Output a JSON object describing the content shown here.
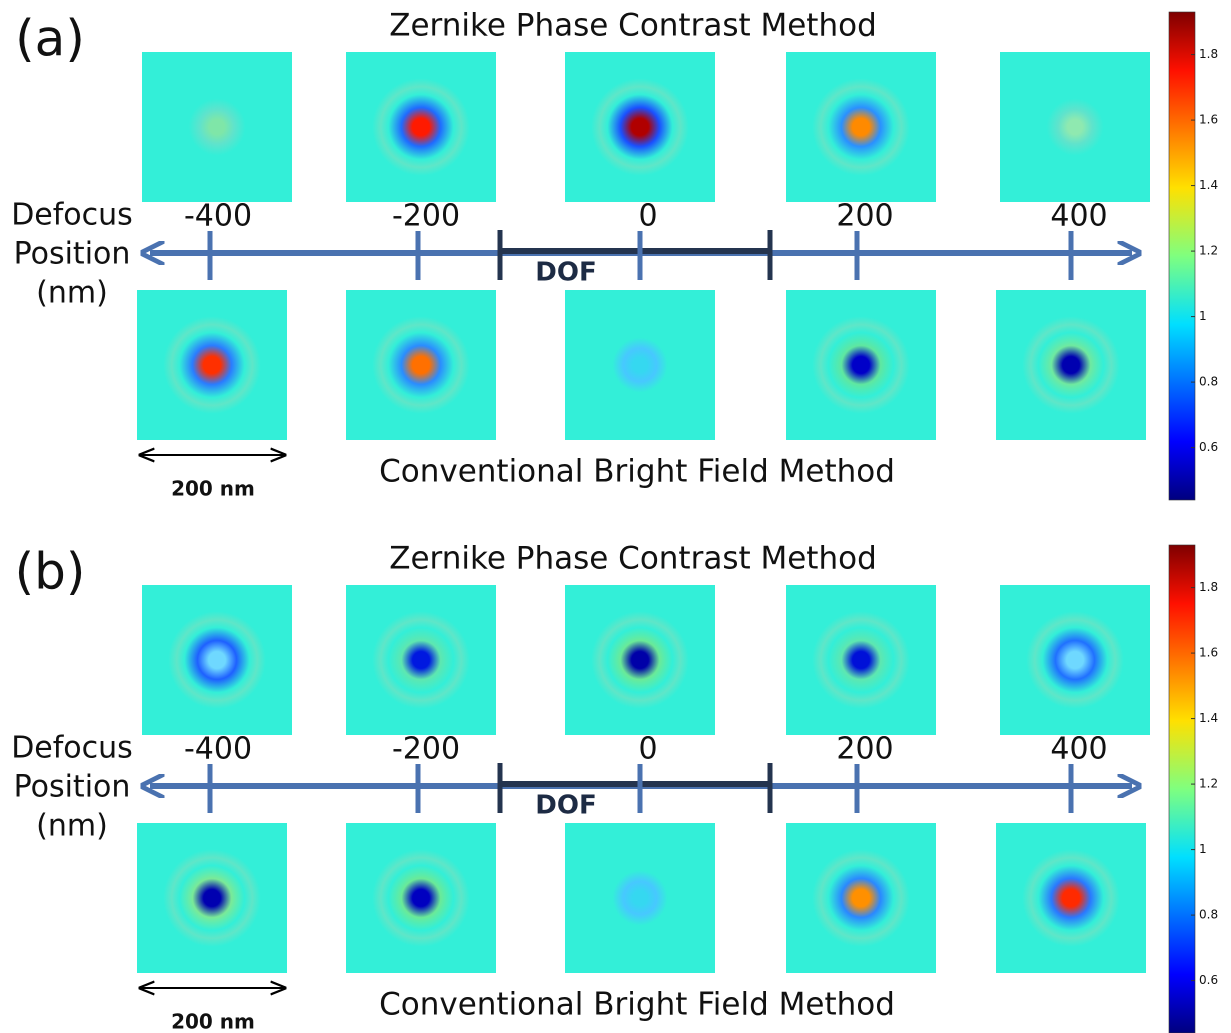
{
  "panels": [
    {
      "label": "(a)",
      "top_title": "Zernike Phase Contrast Method",
      "bottom_title": "Conventional Bright Field Method",
      "axis_label": [
        "Defocus",
        "Position",
        "(nm)"
      ],
      "defocus": [
        -400,
        -200,
        0,
        200,
        400
      ],
      "dof": "DOF",
      "scale_bar": "200 nm",
      "colorbar": {
        "lim": [
          0.44,
          1.93
        ],
        "ticks": [
          0.6,
          0.8,
          1,
          1.2,
          1.4,
          1.6,
          1.8
        ]
      }
    },
    {
      "label": "(b)",
      "top_title": "Zernike Phase Contrast Method",
      "bottom_title": "Conventional Bright Field Method",
      "axis_label": [
        "Defocus",
        "Position",
        "(nm)"
      ],
      "defocus": [
        -400,
        -200,
        0,
        200,
        400
      ],
      "dof": "DOF",
      "scale_bar": "200 nm",
      "colorbar": {
        "lim": [
          0.44,
          1.93
        ],
        "ticks": [
          0.6,
          0.8,
          1,
          1.2,
          1.4,
          1.6,
          1.8
        ]
      }
    }
  ]
}
